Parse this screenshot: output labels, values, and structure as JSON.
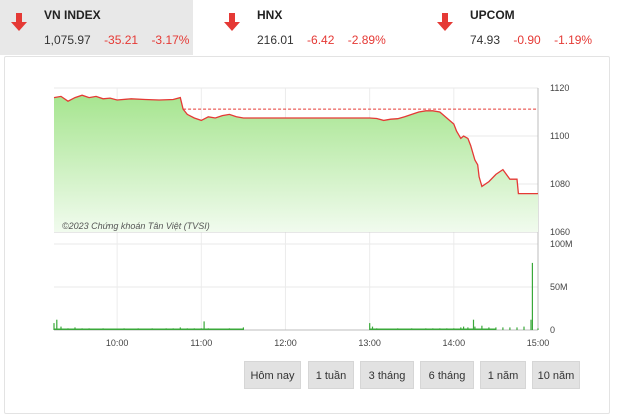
{
  "indices": [
    {
      "name": "VN INDEX",
      "value": "1,075.97",
      "change": "-35.21",
      "percent": "-3.17%",
      "active": true
    },
    {
      "name": "HNX",
      "value": "216.01",
      "change": "-6.42",
      "percent": "-2.89%",
      "active": false
    },
    {
      "name": "UPCOM",
      "value": "74.93",
      "change": "-0.90",
      "percent": "-1.19%",
      "active": false
    }
  ],
  "colors": {
    "down": "#e53935",
    "area_top": "#a6e58f",
    "area_bottom": "#f1fbee",
    "volume": "#3aa83a",
    "reference": "#e53935"
  },
  "watermark": "©2023 Chứng khoán Tân Việt (TVSI)",
  "range_buttons": [
    "Hôm nay",
    "1 tuần",
    "3 tháng",
    "6 tháng",
    "1 năm",
    "10 năm"
  ],
  "chart_data": [
    {
      "type": "area",
      "reference_value": 1111.2,
      "ylim": [
        1060,
        1120
      ],
      "y_ticks": [
        "1120",
        "1100",
        "1080",
        "1060"
      ],
      "x_ticks": [
        "10:00",
        "11:00",
        "12:00",
        "13:00",
        "14:00",
        "15:00"
      ],
      "xlim": [
        "09:15",
        "15:00"
      ],
      "series": [
        {
          "x": [
            "09:15",
            "09:20",
            "09:25",
            "09:30",
            "09:35",
            "09:40",
            "09:45",
            "09:50",
            "09:55",
            "10:00",
            "10:10",
            "10:20",
            "10:30",
            "10:40",
            "10:45",
            "10:47",
            "10:50",
            "10:55",
            "11:00",
            "11:05",
            "11:10",
            "11:15",
            "11:20",
            "11:25",
            "11:30",
            "12:00",
            "12:30",
            "13:00",
            "13:05",
            "13:10",
            "13:15",
            "13:20",
            "13:25",
            "13:30",
            "13:35",
            "13:40",
            "13:45",
            "13:50",
            "13:52",
            "13:55",
            "13:58",
            "14:00",
            "14:02",
            "14:03",
            "14:05",
            "14:07",
            "14:10",
            "14:12",
            "14:15",
            "14:17",
            "14:18",
            "14:20",
            "14:25",
            "14:30",
            "14:35",
            "14:40",
            "14:45",
            "14:46",
            "14:48",
            "14:50",
            "14:53",
            "14:55",
            "14:58",
            "15:00"
          ],
          "y": [
            1116,
            1116.5,
            1114.5,
            1116,
            1117,
            1116,
            1116.5,
            1115.5,
            1115.8,
            1115,
            1115.5,
            1115.2,
            1115,
            1115.2,
            1116,
            1111.2,
            1109,
            1107.5,
            1106.5,
            1108,
            1107.5,
            1108.5,
            1109,
            1108,
            1107.5,
            1107.5,
            1107.5,
            1107.5,
            1107.3,
            1106.5,
            1107,
            1107.2,
            1108,
            1109,
            1110,
            1110.5,
            1110.5,
            1110,
            1109,
            1107.5,
            1106,
            1105,
            1102,
            1101,
            1099,
            1100,
            1099,
            1096,
            1090,
            1088,
            1083,
            1079,
            1081,
            1084,
            1086,
            1082,
            1082,
            1076,
            1076,
            1076,
            1076,
            1076,
            1076,
            1076
          ]
        }
      ]
    },
    {
      "type": "bar",
      "ylim": [
        0,
        100
      ],
      "y_ticks": [
        "100M",
        "50M",
        "0"
      ],
      "x_ticks": [
        "10:00",
        "11:00",
        "12:00",
        "13:00",
        "14:00",
        "15:00"
      ],
      "series": [
        {
          "x": [
            "09:15",
            "09:17",
            "09:20",
            "09:25",
            "09:30",
            "09:35",
            "09:40",
            "09:45",
            "09:50",
            "09:55",
            "10:00",
            "10:05",
            "10:10",
            "10:15",
            "10:20",
            "10:25",
            "10:30",
            "10:35",
            "10:40",
            "10:45",
            "10:50",
            "10:55",
            "11:00",
            "11:02",
            "11:05",
            "11:10",
            "11:15",
            "11:20",
            "11:25",
            "11:30",
            "13:00",
            "13:02",
            "13:05",
            "13:10",
            "13:15",
            "13:20",
            "13:25",
            "13:30",
            "13:35",
            "13:40",
            "13:45",
            "13:50",
            "13:55",
            "14:00",
            "14:05",
            "14:07",
            "14:10",
            "14:14",
            "14:15",
            "14:20",
            "14:25",
            "14:30",
            "14:35",
            "14:40",
            "14:45",
            "14:50",
            "14:55",
            "14:56",
            "15:00"
          ],
          "values": [
            8,
            12,
            4,
            2,
            3,
            2,
            2,
            1.5,
            2,
            1.5,
            1.5,
            2,
            1.5,
            2,
            1.5,
            2,
            1.5,
            2,
            2,
            3,
            2,
            2,
            2,
            10,
            2,
            1.5,
            1.5,
            2,
            1.5,
            3,
            8,
            4,
            2,
            1.5,
            1.5,
            2,
            1.5,
            2,
            1.5,
            2,
            2,
            2,
            2,
            2,
            3,
            4,
            3,
            12,
            4,
            5,
            3,
            3,
            3,
            3,
            3,
            4,
            12,
            78,
            2
          ]
        }
      ]
    }
  ]
}
